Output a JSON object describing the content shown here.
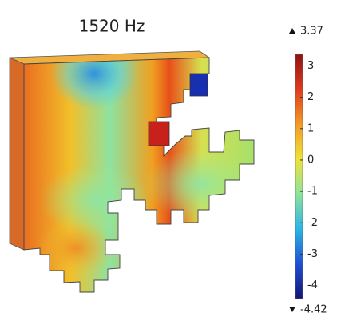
{
  "chart_data": {
    "type": "surface",
    "title": "1520 Hz",
    "colorbar": {
      "lim": [
        -4.42,
        3.37
      ],
      "ticks": [
        3,
        2,
        1,
        0,
        -1,
        -2,
        -3,
        -4
      ],
      "max": 3.37,
      "min": -4.42,
      "colormap": [
        "#14147a",
        "#1f4fd6",
        "#2ab6e4",
        "#8ee39a",
        "#eee23a",
        "#f39a26",
        "#df3a1e",
        "#8e1212"
      ]
    }
  }
}
